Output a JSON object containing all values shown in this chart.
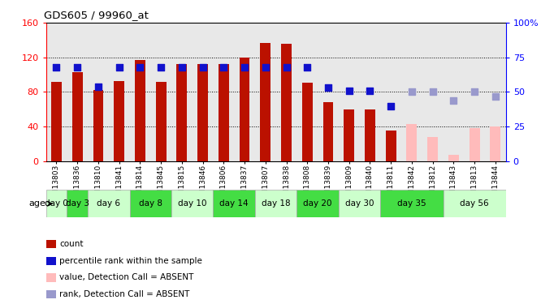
{
  "title": "GDS605 / 99960_at",
  "samples": [
    "GSM13803",
    "GSM13836",
    "GSM13810",
    "GSM13841",
    "GSM13814",
    "GSM13845",
    "GSM13815",
    "GSM13846",
    "GSM13806",
    "GSM13837",
    "GSM13807",
    "GSM13838",
    "GSM13808",
    "GSM13839",
    "GSM13809",
    "GSM13840",
    "GSM13811",
    "GSM13842",
    "GSM13812",
    "GSM13843",
    "GSM13813",
    "GSM13844"
  ],
  "bar_values_present": [
    92,
    103,
    82,
    93,
    117,
    92,
    112,
    112,
    112,
    120,
    137,
    136,
    91,
    68,
    60,
    60,
    35,
    0,
    0,
    0,
    0,
    0
  ],
  "bar_values_absent": [
    0,
    0,
    0,
    0,
    0,
    0,
    0,
    0,
    0,
    0,
    0,
    0,
    0,
    0,
    0,
    0,
    0,
    43,
    28,
    7,
    38,
    40
  ],
  "pct_present": [
    68,
    68,
    54,
    68,
    68,
    68,
    68,
    68,
    68,
    68,
    68,
    68,
    68,
    53,
    51,
    51,
    40,
    null,
    null,
    null,
    null,
    null
  ],
  "pct_absent": [
    null,
    null,
    null,
    null,
    null,
    null,
    null,
    null,
    null,
    null,
    null,
    null,
    null,
    null,
    null,
    null,
    null,
    50,
    50,
    44,
    50,
    47
  ],
  "is_absent": [
    false,
    false,
    false,
    false,
    false,
    false,
    false,
    false,
    false,
    false,
    false,
    false,
    false,
    false,
    false,
    false,
    false,
    true,
    true,
    true,
    true,
    true
  ],
  "bar_color_present": "#bb1100",
  "bar_color_absent": "#ffbbbb",
  "dot_color_present": "#1111cc",
  "dot_color_absent": "#9999cc",
  "bg_color": "#e8e8e8",
  "plot_bg": "#ffffff",
  "ylim_left": [
    0,
    160
  ],
  "ylim_right": [
    0,
    100
  ],
  "yticks_left": [
    0,
    40,
    80,
    120,
    160
  ],
  "yticks_right": [
    0,
    25,
    50,
    75,
    100
  ],
  "ytick_labels_right": [
    "0",
    "25",
    "50",
    "75",
    "100%"
  ],
  "day_groups": [
    {
      "label": "day 0",
      "start": 0,
      "end": 1
    },
    {
      "label": "day 3",
      "start": 1,
      "end": 2
    },
    {
      "label": "day 6",
      "start": 2,
      "end": 4
    },
    {
      "label": "day 8",
      "start": 4,
      "end": 6
    },
    {
      "label": "day 10",
      "start": 6,
      "end": 8
    },
    {
      "label": "day 14",
      "start": 8,
      "end": 10
    },
    {
      "label": "day 18",
      "start": 10,
      "end": 12
    },
    {
      "label": "day 20",
      "start": 12,
      "end": 14
    },
    {
      "label": "day 30",
      "start": 14,
      "end": 16
    },
    {
      "label": "day 35",
      "start": 16,
      "end": 19
    },
    {
      "label": "day 56",
      "start": 19,
      "end": 22
    }
  ],
  "day_group_color_light": "#ccffcc",
  "day_group_color_dark": "#44dd44",
  "bar_width": 0.5,
  "dot_size": 28,
  "legend_items": [
    {
      "label": "count",
      "color": "#bb1100"
    },
    {
      "label": "percentile rank within the sample",
      "color": "#1111cc"
    },
    {
      "label": "value, Detection Call = ABSENT",
      "color": "#ffbbbb"
    },
    {
      "label": "rank, Detection Call = ABSENT",
      "color": "#9999cc"
    }
  ]
}
